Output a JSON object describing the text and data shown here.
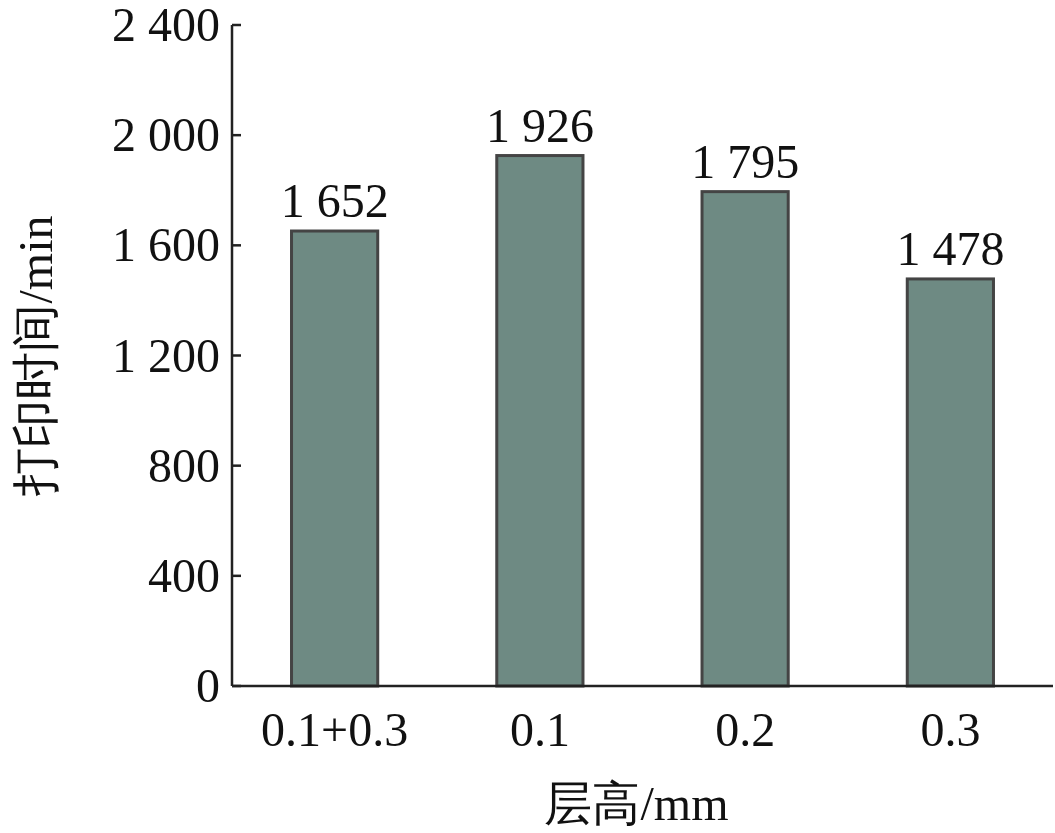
{
  "chart_data": {
    "type": "bar",
    "xlabel": "层高/mm",
    "ylabel": "打印时间/min",
    "categories": [
      "0.1+0.3",
      "0.1",
      "0.2",
      "0.3"
    ],
    "values": [
      1652,
      1926,
      1795,
      1478
    ],
    "value_labels": [
      "1 652",
      "1 926",
      "1 795",
      "1 478"
    ],
    "color": "#6e8a83",
    "ylim": [
      0,
      2400
    ],
    "yticks": [
      0,
      400,
      800,
      {
        "value": 1200,
        "label": "1 200"
      },
      {
        "value": 1600,
        "label": "1 600"
      },
      {
        "value": 2000,
        "label": "2 000"
      },
      {
        "value": 2400,
        "label": "2 400"
      }
    ],
    "grid": false
  }
}
